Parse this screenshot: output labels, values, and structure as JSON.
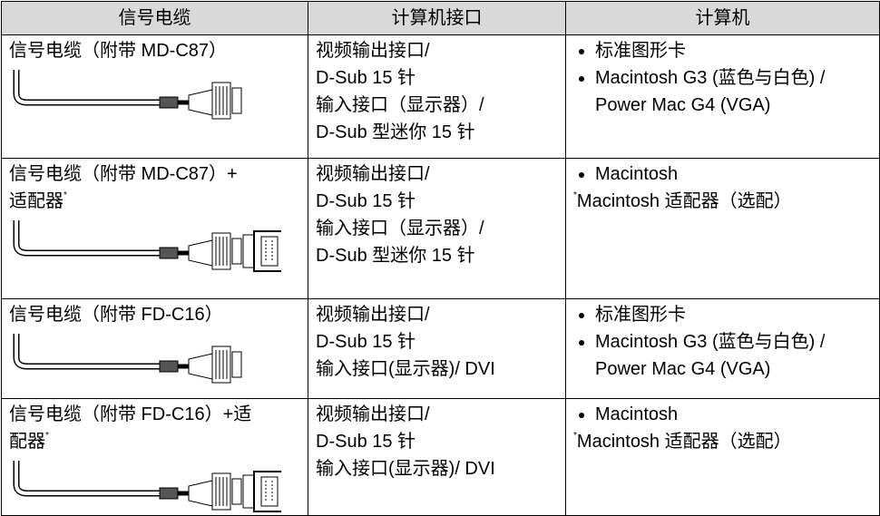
{
  "table": {
    "header": [
      "信号电缆",
      "计算机接口",
      "计算机"
    ],
    "rows": [
      {
        "cable": [
          "信号电缆（附带 MD-C87）"
        ],
        "interface": [
          "视频输出接口/",
          "D-Sub 15 针",
          "输入接口（显示器）/",
          "D-Sub 型迷你 15 针"
        ],
        "computer": {
          "items": [
            "标准图形卡",
            "Macintosh G3 (蓝色与白色) / Power Mac G4 (VGA)"
          ]
        }
      },
      {
        "cable": [
          "信号电缆（附带 MD-C87）+",
          "适配器"
        ],
        "cable_mark": "*",
        "interface": [
          "视频输出接口/",
          "D-Sub 15 针",
          "输入接口（显示器）/",
          "D-Sub 型迷你 15 针"
        ],
        "computer": {
          "items": [
            "Macintosh"
          ],
          "note_mark": "*",
          "note": "Macintosh 适配器（选配）"
        }
      },
      {
        "cable": [
          "信号电缆（附带 FD-C16）"
        ],
        "interface": [
          "视频输出接口/",
          "D-Sub 15 针",
          "输入接口(显示器)/ DVI"
        ],
        "computer": {
          "items": [
            "标准图形卡",
            "Macintosh G3 (蓝色与白色) / Power Mac G4 (VGA)"
          ]
        }
      },
      {
        "cable": [
          "信号电缆（附带 FD-C16）+适",
          "配器"
        ],
        "cable_mark": "*",
        "interface": [
          "视频输出接口/",
          "D-Sub 15 针",
          "输入接口(显示器)/ DVI"
        ],
        "computer": {
          "items": [
            "Macintosh"
          ],
          "note_mark": "*",
          "note": "Macintosh 适配器（选配）"
        }
      }
    ]
  }
}
